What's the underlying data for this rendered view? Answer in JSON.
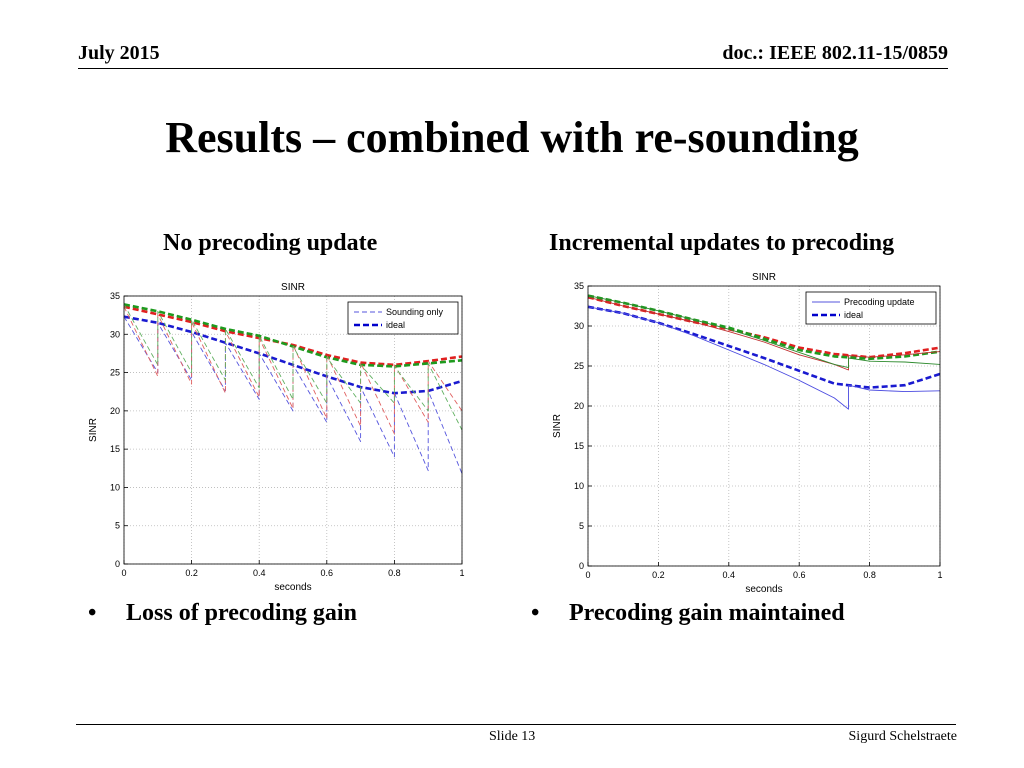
{
  "header": {
    "date": "July 2015",
    "doc": "doc.: IEEE 802.11-15/0859"
  },
  "slide_title": "Results – combined with re-sounding",
  "left": {
    "subtitle": "No precoding update",
    "bullet": "Loss of precoding gain"
  },
  "right": {
    "subtitle": "Incremental updates to precoding",
    "bullet": "Precoding gain maintained"
  },
  "bullet_symbol": "•",
  "footer": {
    "slide": "Slide 13",
    "author": "Sigurd Schelstraete"
  },
  "chart_data": [
    {
      "type": "line",
      "title": "SINR",
      "xlabel": "seconds",
      "ylabel": "SINR",
      "xlim": [
        0,
        1
      ],
      "ylim": [
        0,
        35
      ],
      "xticks": [
        0,
        0.2,
        0.4,
        0.6,
        0.8,
        1
      ],
      "xtick_labels": [
        "0",
        "0.2",
        "0.4",
        "0.6",
        "0.8",
        "1"
      ],
      "yticks": [
        0,
        5,
        10,
        15,
        20,
        25,
        30,
        35
      ],
      "ytick_labels": [
        "0",
        "5",
        "10",
        "15",
        "20",
        "25",
        "30",
        "35"
      ],
      "grid": true,
      "legend": {
        "position": "top-right",
        "entries": [
          {
            "label": "Sounding only",
            "color": "#5555dd",
            "style": "dash"
          },
          {
            "label": "ideal",
            "color": "#0000cc",
            "style": "bold-dash"
          }
        ]
      },
      "series": [
        {
          "name": "ideal (blue)",
          "color": "#1a1ad0",
          "style": "bold-dash",
          "x": [
            0,
            0.1,
            0.2,
            0.3,
            0.4,
            0.5,
            0.6,
            0.7,
            0.8,
            0.9,
            1.0
          ],
          "y": [
            32.3,
            31.5,
            30.3,
            28.9,
            27.5,
            26.0,
            24.5,
            23.1,
            22.3,
            22.6,
            23.9
          ]
        },
        {
          "name": "ideal (red)",
          "color": "#e02020",
          "style": "bold-dash",
          "x": [
            0,
            0.1,
            0.2,
            0.3,
            0.4,
            0.5,
            0.6,
            0.7,
            0.8,
            0.9,
            1.0
          ],
          "y": [
            33.6,
            32.6,
            31.6,
            30.4,
            29.5,
            28.6,
            27.3,
            26.3,
            26.0,
            26.5,
            27.1
          ]
        },
        {
          "name": "ideal (green)",
          "color": "#1e9a1e",
          "style": "bold-dash",
          "x": [
            0,
            0.1,
            0.2,
            0.3,
            0.4,
            0.5,
            0.6,
            0.7,
            0.8,
            0.9,
            1.0
          ],
          "y": [
            33.9,
            33.0,
            31.9,
            30.7,
            29.8,
            28.4,
            27.0,
            26.0,
            25.8,
            26.2,
            26.6
          ]
        },
        {
          "name": "Sounding only (blue)",
          "color": "#5555dd",
          "style": "dash",
          "x": [
            0,
            0.1,
            0.1,
            0.2,
            0.2,
            0.3,
            0.3,
            0.4,
            0.4,
            0.5,
            0.5,
            0.6,
            0.6,
            0.7,
            0.7,
            0.8,
            0.8,
            0.9,
            0.9,
            1.0
          ],
          "y": [
            32.3,
            25.0,
            31.5,
            24.0,
            30.3,
            22.6,
            28.9,
            21.5,
            27.5,
            20.0,
            26.0,
            18.5,
            24.5,
            16.0,
            23.1,
            14.0,
            22.3,
            12.2,
            22.6,
            11.8
          ]
        },
        {
          "name": "Sounding only (red)",
          "color": "#e06060",
          "style": "dash",
          "x": [
            0,
            0.1,
            0.1,
            0.2,
            0.2,
            0.3,
            0.3,
            0.4,
            0.4,
            0.5,
            0.5,
            0.6,
            0.6,
            0.7,
            0.7,
            0.8,
            0.8,
            0.9,
            0.9,
            1.0
          ],
          "y": [
            33.6,
            24.5,
            32.6,
            23.5,
            31.6,
            22.3,
            30.4,
            21.8,
            29.5,
            20.3,
            28.6,
            19.0,
            27.3,
            18.0,
            26.3,
            17.0,
            26.0,
            18.5,
            26.5,
            20.0
          ]
        },
        {
          "name": "Sounding only (green)",
          "color": "#60b060",
          "style": "dash",
          "x": [
            0,
            0.1,
            0.1,
            0.2,
            0.2,
            0.3,
            0.3,
            0.4,
            0.4,
            0.5,
            0.5,
            0.6,
            0.6,
            0.7,
            0.7,
            0.8,
            0.8,
            0.9,
            0.9,
            1.0
          ],
          "y": [
            33.9,
            26.0,
            33.0,
            25.0,
            31.9,
            24.0,
            30.7,
            23.0,
            29.8,
            21.5,
            28.4,
            21.0,
            27.0,
            21.0,
            26.0,
            21.0,
            25.8,
            20.0,
            26.2,
            17.5
          ]
        }
      ]
    },
    {
      "type": "line",
      "title": "SINR",
      "xlabel": "seconds",
      "ylabel": "SINR",
      "xlim": [
        0,
        1
      ],
      "ylim": [
        0,
        35
      ],
      "xticks": [
        0,
        0.2,
        0.4,
        0.6,
        0.8,
        1
      ],
      "xtick_labels": [
        "0",
        "0.2",
        "0.4",
        "0.6",
        "0.8",
        "1"
      ],
      "yticks": [
        0,
        5,
        10,
        15,
        20,
        25,
        30,
        35
      ],
      "ytick_labels": [
        "0",
        "5",
        "10",
        "15",
        "20",
        "25",
        "30",
        "35"
      ],
      "grid": true,
      "legend": {
        "position": "top-right",
        "entries": [
          {
            "label": "Precoding update",
            "color": "#5555dd",
            "style": "solid"
          },
          {
            "label": "ideal",
            "color": "#0000cc",
            "style": "bold-dash"
          }
        ]
      },
      "series": [
        {
          "name": "ideal (blue)",
          "color": "#1a1ad0",
          "style": "bold-dash",
          "x": [
            0,
            0.1,
            0.2,
            0.3,
            0.4,
            0.5,
            0.6,
            0.7,
            0.8,
            0.9,
            1.0
          ],
          "y": [
            32.4,
            31.6,
            30.4,
            29.0,
            27.5,
            26.0,
            24.4,
            22.8,
            22.3,
            22.6,
            24.0
          ]
        },
        {
          "name": "ideal (red)",
          "color": "#e02020",
          "style": "bold-dash",
          "x": [
            0,
            0.1,
            0.2,
            0.3,
            0.4,
            0.5,
            0.6,
            0.7,
            0.8,
            0.9,
            1.0
          ],
          "y": [
            33.6,
            32.5,
            31.5,
            30.5,
            29.6,
            28.6,
            27.3,
            26.5,
            26.1,
            26.6,
            27.3
          ]
        },
        {
          "name": "ideal (green)",
          "color": "#1e9a1e",
          "style": "bold-dash",
          "x": [
            0,
            0.1,
            0.2,
            0.3,
            0.4,
            0.5,
            0.6,
            0.7,
            0.8,
            0.9,
            1.0
          ],
          "y": [
            33.8,
            32.9,
            31.9,
            30.8,
            29.8,
            28.4,
            27.0,
            26.2,
            25.9,
            26.2,
            26.8
          ]
        },
        {
          "name": "Precoding update (blue)",
          "color": "#4a4ae0",
          "style": "solid",
          "x": [
            0,
            0.1,
            0.2,
            0.3,
            0.4,
            0.5,
            0.6,
            0.7,
            0.74,
            0.74,
            0.8,
            0.9,
            1.0
          ],
          "y": [
            32.4,
            31.6,
            30.4,
            28.8,
            27.0,
            25.2,
            23.2,
            21.0,
            19.6,
            22.6,
            22.0,
            21.8,
            21.9
          ]
        },
        {
          "name": "Precoding update (red)",
          "color": "#c03030",
          "style": "solid",
          "x": [
            0,
            0.1,
            0.2,
            0.3,
            0.4,
            0.5,
            0.6,
            0.7,
            0.74,
            0.74,
            0.8,
            0.9,
            1.0
          ],
          "y": [
            33.6,
            32.5,
            31.5,
            30.5,
            29.3,
            28.0,
            26.4,
            25.2,
            24.5,
            26.3,
            26.1,
            26.4,
            26.8
          ]
        },
        {
          "name": "Precoding update (green)",
          "color": "#2e8b2e",
          "style": "solid",
          "x": [
            0,
            0.1,
            0.2,
            0.3,
            0.4,
            0.5,
            0.6,
            0.7,
            0.74,
            0.74,
            0.8,
            0.9,
            1.0
          ],
          "y": [
            33.8,
            32.9,
            31.9,
            30.8,
            29.6,
            28.2,
            26.7,
            25.2,
            24.8,
            26.0,
            25.6,
            25.5,
            25.2
          ]
        }
      ]
    }
  ]
}
